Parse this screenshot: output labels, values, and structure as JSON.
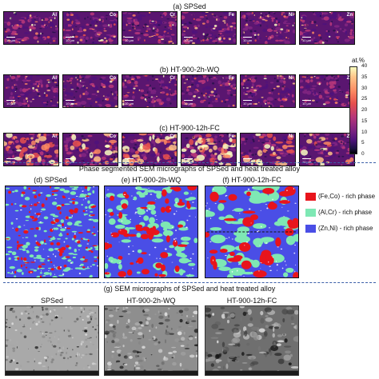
{
  "edx": {
    "rows": [
      {
        "title": "(a) SPSed"
      },
      {
        "title": "(b) HT-900-2h-WQ"
      },
      {
        "title": "(c) HT-900-12h-FC"
      }
    ],
    "elements": [
      "Al",
      "Co",
      "Cr",
      "Fe",
      "Ni",
      "Zn"
    ],
    "scale_text": "10 µm",
    "colorbar": {
      "unit": "at.%",
      "ticks": [
        "40",
        "35",
        "30",
        "25",
        "20",
        "15",
        "10",
        "5",
        "0"
      ],
      "range": [
        0,
        40
      ],
      "colormap": "magma"
    }
  },
  "phase": {
    "header": "Phase segmented SEM micrographs of SPSed and heat treated alloy",
    "panels": [
      {
        "title": "(d) SPSed"
      },
      {
        "title": "(e) HT-900-2h-WQ"
      },
      {
        "title": "(f) HT-900-12h-FC"
      }
    ],
    "legend": [
      {
        "label": "(Fe,Co) - rich phase",
        "color": "#e8141c"
      },
      {
        "label": "(Al,Cr) - rich phase",
        "color": "#7ee8b4"
      },
      {
        "label": "(Zn,Ni) - rich phase",
        "color": "#4a4ee6"
      }
    ]
  },
  "sem": {
    "header": "(g) SEM micrographs of SPSed and heat treated alloy",
    "panels": [
      {
        "title": "SPSed"
      },
      {
        "title": "HT-900-2h-WQ"
      },
      {
        "title": "HT-900-12h-FC"
      }
    ]
  }
}
